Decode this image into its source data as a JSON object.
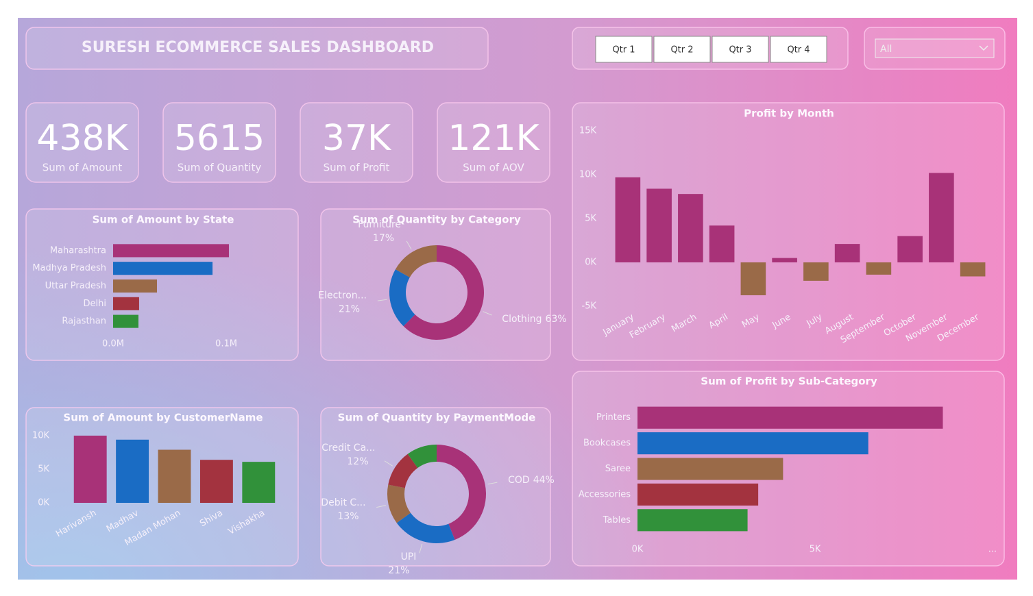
{
  "header": {
    "title": "SURESH ECOMMERCE SALES DASHBOARD"
  },
  "slicers": {
    "quarters": [
      "Qtr 1",
      "Qtr 2",
      "Qtr 3",
      "Qtr 4"
    ],
    "dropdown": "All"
  },
  "kpis": [
    {
      "value": "438K",
      "label": "Sum of Amount"
    },
    {
      "value": "5615",
      "label": "Sum of Quantity"
    },
    {
      "value": "37K",
      "label": "Sum of Profit"
    },
    {
      "value": "121K",
      "label": "Sum of AOV"
    }
  ],
  "chart_data": [
    {
      "type": "hbar",
      "title": "Sum of Amount by State",
      "categories": [
        "Maharashtra",
        "Madhya Pradesh",
        "Uttar Pradesh",
        "Delhi",
        "Rajasthan"
      ],
      "values": [
        102400,
        87900,
        38800,
        23000,
        22400
      ],
      "colors": [
        "#a83278",
        "#1a6cc4",
        "#9a6a48",
        "#a3333f",
        "#31913a"
      ],
      "xlim": [
        0,
        140000
      ],
      "xticks": [
        {
          "value": 0,
          "label": "0.0M"
        },
        {
          "value": 100000,
          "label": "0.1M"
        }
      ]
    },
    {
      "type": "donut",
      "title": "Sum of Quantity by Category",
      "categories": [
        "Clothing",
        "Electron...",
        "Furniture"
      ],
      "values": [
        63,
        21,
        17
      ],
      "value_labels": [
        "63%",
        "21%",
        "17%"
      ],
      "colors": [
        "#a83278",
        "#1a6cc4",
        "#9a6a48"
      ]
    },
    {
      "type": "bar",
      "title": "Profit by Month",
      "categories": [
        "January",
        "February",
        "March",
        "April",
        "May",
        "June",
        "July",
        "August",
        "September",
        "October",
        "November",
        "December"
      ],
      "values": [
        9700,
        8400,
        7800,
        4200,
        -3750,
        500,
        -2100,
        2100,
        -1400,
        3000,
        10200,
        -1600
      ],
      "color": "#a83278",
      "negative_color": "#9a6a48",
      "ylim": [
        -5000,
        15000
      ],
      "yticks": [
        {
          "value": -5000,
          "label": "-5K"
        },
        {
          "value": 0,
          "label": "0K"
        },
        {
          "value": 5000,
          "label": "5K"
        },
        {
          "value": 10000,
          "label": "10K"
        },
        {
          "value": 15000,
          "label": "15K"
        }
      ]
    },
    {
      "type": "bar",
      "title": "Sum of Amount by CustomerName",
      "categories": [
        "Harivansh",
        "Madhav",
        "Madan Mohan",
        "Shiva",
        "Vishakha"
      ],
      "values": [
        10000,
        9400,
        7900,
        6400,
        6100
      ],
      "colors": [
        "#a83278",
        "#1a6cc4",
        "#9a6a48",
        "#a3333f",
        "#31913a"
      ],
      "ylim": [
        0,
        10500
      ],
      "yticks": [
        {
          "value": 0,
          "label": "0K"
        },
        {
          "value": 5000,
          "label": "5K"
        },
        {
          "value": 10000,
          "label": "10K"
        }
      ]
    },
    {
      "type": "donut",
      "title": "Sum of Quantity by PaymentMode",
      "categories": [
        "COD",
        "UPI",
        "Debit C...",
        "Credit Ca...",
        null
      ],
      "values": [
        44,
        21,
        13,
        12,
        10
      ],
      "value_labels": [
        "44%",
        "21%",
        "13%",
        "12%",
        null
      ],
      "colors": [
        "#a83278",
        "#1a6cc4",
        "#9a6a48",
        "#a3333f",
        "#31913a"
      ]
    },
    {
      "type": "hbar",
      "title": "Sum of Profit by Sub-Category",
      "categories": [
        "Printers",
        "Bookcases",
        "Saree",
        "Accessories",
        "Tables"
      ],
      "values": [
        8600,
        6500,
        4100,
        3400,
        3100
      ],
      "colors": [
        "#a83278",
        "#1a6cc4",
        "#9a6a48",
        "#a3333f",
        "#31913a"
      ],
      "xlim": [
        0,
        10000
      ],
      "xticks": [
        {
          "value": 0,
          "label": "0K"
        },
        {
          "value": 5000,
          "label": "5K"
        },
        {
          "value": 10000,
          "label": "..."
        }
      ]
    }
  ]
}
